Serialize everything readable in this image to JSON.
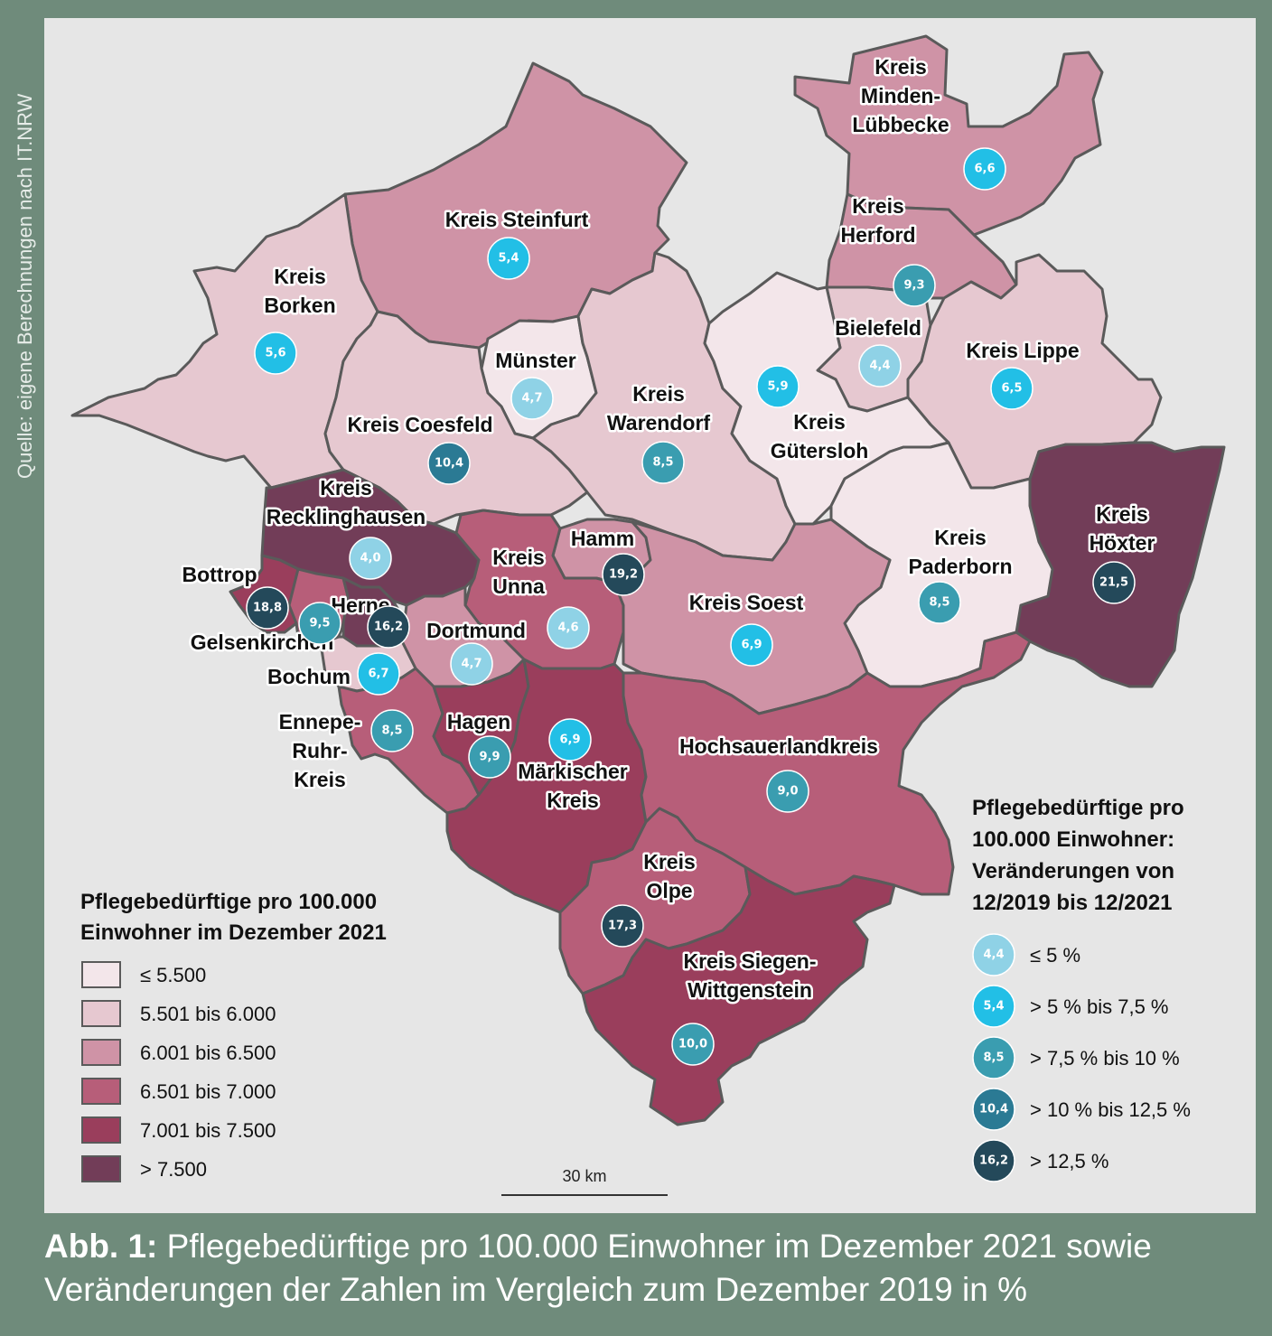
{
  "source": "Quelle: eigene Berechnungen nach IT.NRW",
  "colors": {
    "c1": "#f3e6ea",
    "c2": "#e6c8d0",
    "c3": "#cf93a6",
    "c4": "#b75e79",
    "c5": "#9a3e5c",
    "c6": "#723d58",
    "b1": "#8fd2e6",
    "b2": "#22bfe6",
    "b3": "#3a9db0",
    "b4": "#2b7a94",
    "b5": "#24495a"
  },
  "regions": [
    {
      "name": "Kreis Minden-Lübbecke",
      "cls": "c3",
      "change": "6,6",
      "bcls": "b2",
      "label": [
        "Kreis",
        "Minden-",
        "Lübbecke"
      ]
    },
    {
      "name": "Kreis Herford",
      "cls": "c3",
      "change": "9,3",
      "bcls": "b3",
      "label": [
        "Kreis",
        "Herford"
      ]
    },
    {
      "name": "Kreis Steinfurt",
      "cls": "c3",
      "change": "5,4",
      "bcls": "b2",
      "label": [
        "Kreis Steinfurt"
      ]
    },
    {
      "name": "Kreis Borken",
      "cls": "c2",
      "change": "5,6",
      "bcls": "b2",
      "label": [
        "Kreis",
        "Borken"
      ]
    },
    {
      "name": "Bielefeld",
      "cls": "c2",
      "change": "4,4",
      "bcls": "b1",
      "label": [
        "Bielefeld"
      ]
    },
    {
      "name": "Kreis Lippe",
      "cls": "c2",
      "change": "6,5",
      "bcls": "b2",
      "label": [
        "Kreis Lippe"
      ]
    },
    {
      "name": "Münster",
      "cls": "c1",
      "change": "4,7",
      "bcls": "b1",
      "label": [
        "Münster"
      ]
    },
    {
      "name": "Kreis Warendorf",
      "cls": "c2",
      "change": "8,5",
      "bcls": "b3",
      "label": [
        "Kreis",
        "Warendorf"
      ]
    },
    {
      "name": "Kreis Gütersloh",
      "cls": "c1",
      "change": "5,9",
      "bcls": "b2",
      "label": [
        "Kreis",
        "Gütersloh"
      ]
    },
    {
      "name": "Kreis Coesfeld",
      "cls": "c2",
      "change": "10,4",
      "bcls": "b4",
      "label": [
        "Kreis Coesfeld"
      ]
    },
    {
      "name": "Kreis Recklinghausen",
      "cls": "c6",
      "change": "4,0",
      "bcls": "b1",
      "label": [
        "Kreis",
        "Recklinghausen"
      ]
    },
    {
      "name": "Kreis Höxter",
      "cls": "c6",
      "change": "21,5",
      "bcls": "b5",
      "label": [
        "Kreis",
        "Höxter"
      ]
    },
    {
      "name": "Kreis Paderborn",
      "cls": "c1",
      "change": "8,5",
      "bcls": "b3",
      "label": [
        "Kreis",
        "Paderborn"
      ]
    },
    {
      "name": "Hamm",
      "cls": "c3",
      "change": "19,2",
      "bcls": "b5",
      "label": [
        "Hamm"
      ]
    },
    {
      "name": "Kreis Unna",
      "cls": "c4",
      "change": "4,6",
      "bcls": "b1",
      "label": [
        "Kreis",
        "Unna"
      ]
    },
    {
      "name": "Kreis Soest",
      "cls": "c3",
      "change": "6,9",
      "bcls": "b2",
      "label": [
        "Kreis Soest"
      ]
    },
    {
      "name": "Bottrop",
      "cls": "c5",
      "change": "18,8",
      "bcls": "b5",
      "label": [
        "Bottrop"
      ]
    },
    {
      "name": "Gelsenkirchen",
      "cls": "c4",
      "change": "9,5",
      "bcls": "b3",
      "label": [
        "Gelsenkirchen"
      ]
    },
    {
      "name": "Herne",
      "cls": "c6",
      "change": "16,2",
      "bcls": "b5",
      "label": [
        "Herne"
      ]
    },
    {
      "name": "Dortmund",
      "cls": "c3",
      "change": "4,7",
      "bcls": "b1",
      "label": [
        "Dortmund"
      ]
    },
    {
      "name": "Bochum",
      "cls": "c2",
      "change": "6,7",
      "bcls": "b2",
      "label": [
        "Bochum"
      ]
    },
    {
      "name": "Ennepe-Ruhr-Kreis",
      "cls": "c4",
      "change": "8,5",
      "bcls": "b3",
      "label": [
        "Ennepe-",
        "Ruhr-",
        "Kreis"
      ]
    },
    {
      "name": "Hagen",
      "cls": "c5",
      "change": "9,9",
      "bcls": "b3",
      "label": [
        "Hagen"
      ]
    },
    {
      "name": "Märkischer Kreis",
      "cls": "c5",
      "change": "6,9",
      "bcls": "b2",
      "label": [
        "Märkischer",
        "Kreis"
      ]
    },
    {
      "name": "Hochsauerlandkreis",
      "cls": "c4",
      "change": "9,0",
      "bcls": "b3",
      "label": [
        "Hochsauerlandkreis"
      ]
    },
    {
      "name": "Kreis Olpe",
      "cls": "c4",
      "change": "17,3",
      "bcls": "b5",
      "label": [
        "Kreis",
        "Olpe"
      ]
    },
    {
      "name": "Kreis Siegen-Wittgenstein",
      "cls": "c5",
      "change": "10,0",
      "bcls": "b3",
      "label": [
        "Kreis Siegen-",
        "Wittgenstein"
      ]
    }
  ],
  "legend_left": {
    "title": [
      "Pflegebedürftige pro 100.000",
      "Einwohner im Dezember 2021"
    ],
    "items": [
      {
        "cls": "c1",
        "label": "≤ 5.500"
      },
      {
        "cls": "c2",
        "label": "5.501 bis 6.000"
      },
      {
        "cls": "c3",
        "label": "6.001 bis 6.500"
      },
      {
        "cls": "c4",
        "label": "6.501 bis 7.000"
      },
      {
        "cls": "c5",
        "label": "7.001 bis 7.500"
      },
      {
        "cls": "c6",
        "label": "> 7.500"
      }
    ]
  },
  "legend_right": {
    "title": [
      "Pflegebedürftige pro",
      "100.000 Einwohner:",
      "Veränderungen von",
      "12/2019 bis 12/2021"
    ],
    "items": [
      {
        "cls": "b1",
        "example": "4,4",
        "label": "≤ 5 %"
      },
      {
        "cls": "b2",
        "example": "5,4",
        "label": "> 5 % bis 7,5 %"
      },
      {
        "cls": "b3",
        "example": "8,5",
        "label": "> 7,5 % bis 10 %"
      },
      {
        "cls": "b4",
        "example": "10,4",
        "label": "> 10 % bis 12,5 %"
      },
      {
        "cls": "b5",
        "example": "16,2",
        "label": "> 12,5 %"
      }
    ]
  },
  "scale": {
    "label": "30 km"
  },
  "caption": {
    "prefix": "Abb. 1:",
    "line1": " Pflegebedürftige pro 100.000 Einwohner im Dezember 2021 sowie",
    "line2": "Veränderungen der Zahlen im Vergleich zum Dezember 2019 in %"
  }
}
